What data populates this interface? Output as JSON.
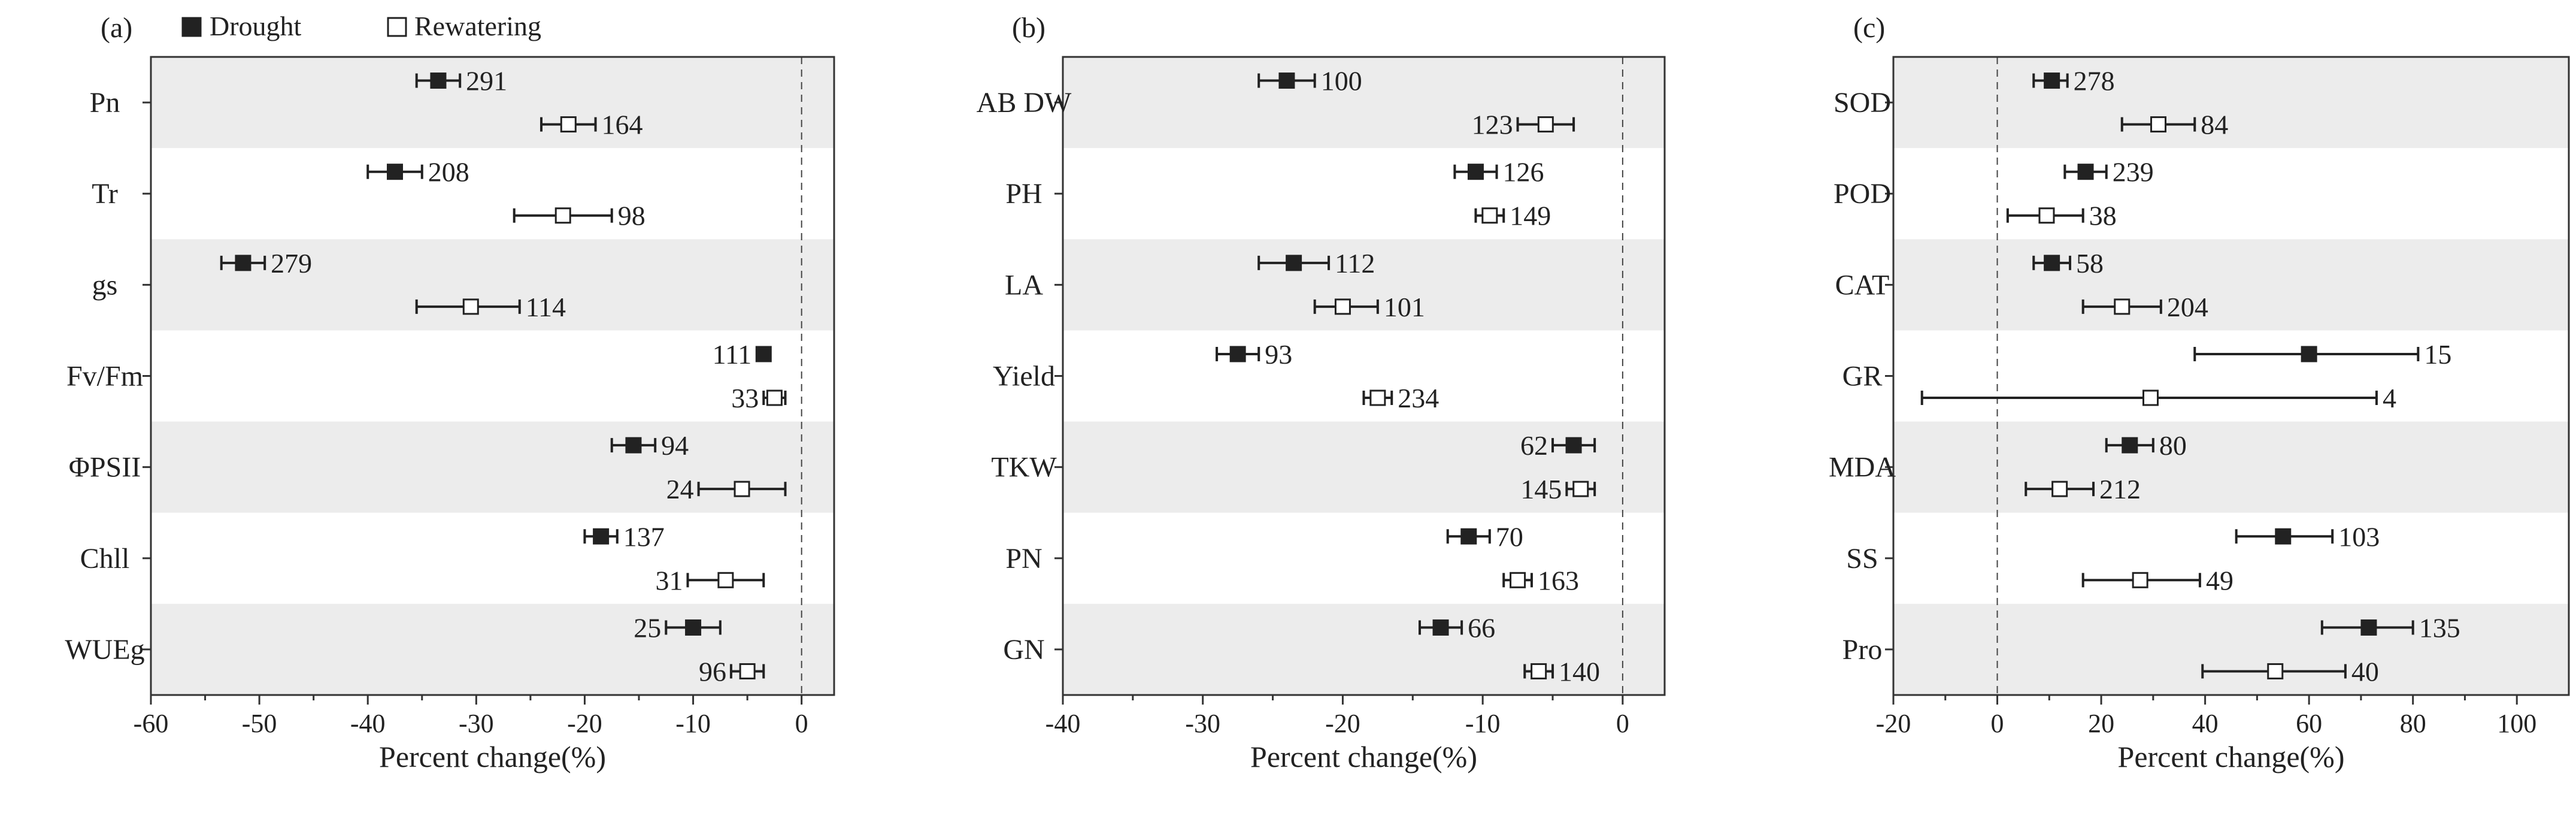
{
  "legend": {
    "drought_label": "Drought",
    "rewatering_label": "Rewatering",
    "drought_color": "#222222",
    "rewatering_color": "#ffffff"
  },
  "colors": {
    "band": "#ececec",
    "axis": "#333333",
    "zero_line": "#444444"
  },
  "chart_data": [
    {
      "type": "forest",
      "panel_label": "(a)",
      "xlabel": "Percent change(%)",
      "xlim": [
        -60,
        3
      ],
      "xticks": [
        -60,
        -50,
        -40,
        -30,
        -20,
        -10,
        0
      ],
      "xtick_labels": [
        "-60",
        "-50",
        "-40",
        "-30",
        "-20",
        "-10",
        "0"
      ],
      "categories": [
        "Pn",
        "Tr",
        "gs",
        "Fv/Fm",
        "ΦPSII",
        "Chll",
        "WUEg"
      ],
      "series": [
        {
          "name": "Drought",
          "mean": [
            -33.5,
            -37.5,
            -51.5,
            -3.5,
            -15.5,
            -18.5,
            -10
          ],
          "lower": [
            -35.5,
            -40,
            -53.5,
            -4,
            -17.5,
            -20,
            -12.5
          ],
          "upper": [
            -31.5,
            -35,
            -49.5,
            -3,
            -13.5,
            -17,
            -7.5
          ],
          "n": [
            "291",
            "208",
            "279",
            "111",
            "94",
            "137",
            "25"
          ],
          "label_side": [
            "right",
            "right",
            "right",
            "left",
            "right",
            "right",
            "left"
          ]
        },
        {
          "name": "Rewatering",
          "mean": [
            -21.5,
            -22,
            -30.5,
            -2.5,
            -5.5,
            -7,
            -5
          ],
          "lower": [
            -24,
            -26.5,
            -35.5,
            -3.5,
            -9.5,
            -10.5,
            -6.5
          ],
          "upper": [
            -19,
            -17.5,
            -26,
            -1.5,
            -1.5,
            -3.5,
            -3.5
          ],
          "n": [
            "164",
            "98",
            "114",
            "33",
            "24",
            "31",
            "96"
          ],
          "label_side": [
            "right",
            "right",
            "right",
            "left",
            "left",
            "left",
            "left"
          ]
        }
      ]
    },
    {
      "type": "forest",
      "panel_label": "(b)",
      "xlabel": "Percent change(%)",
      "xlim": [
        -40,
        3
      ],
      "xticks": [
        -40,
        -30,
        -20,
        -10,
        0
      ],
      "xtick_labels": [
        "-40",
        "-30",
        "-20",
        "-10",
        "0"
      ],
      "categories": [
        "AB DW",
        "PH",
        "LA",
        "Yield",
        "TKW",
        "PN",
        "GN"
      ],
      "series": [
        {
          "name": "Drought",
          "mean": [
            -24,
            -10.5,
            -23.5,
            -27.5,
            -3.5,
            -11,
            -13
          ],
          "lower": [
            -26,
            -12,
            -26,
            -29,
            -5,
            -12.5,
            -14.5
          ],
          "upper": [
            -22,
            -9,
            -21,
            -26,
            -2,
            -9.5,
            -11.5
          ],
          "n": [
            "100",
            "126",
            "112",
            "93",
            "62",
            "70",
            "66"
          ],
          "label_side": [
            "right",
            "right",
            "right",
            "right",
            "left",
            "right",
            "right"
          ]
        },
        {
          "name": "Rewatering",
          "mean": [
            -5.5,
            -9.5,
            -20,
            -17.5,
            -3,
            -7.5,
            -6
          ],
          "lower": [
            -7.5,
            -10.5,
            -22,
            -18.5,
            -4,
            -8.5,
            -7
          ],
          "upper": [
            -3.5,
            -8.5,
            -17.5,
            -16.5,
            -2,
            -6.5,
            -5
          ],
          "n": [
            "123",
            "149",
            "101",
            "234",
            "145",
            "163",
            "140"
          ],
          "label_side": [
            "left",
            "right",
            "right",
            "right",
            "left",
            "right",
            "right"
          ]
        }
      ]
    },
    {
      "type": "forest",
      "panel_label": "(c)",
      "xlabel": "Percent change(%)",
      "xlim": [
        -20,
        110
      ],
      "xticks": [
        -20,
        0,
        20,
        40,
        60,
        80,
        100
      ],
      "xtick_labels": [
        "-20",
        "0",
        "20",
        "40",
        "60",
        "80",
        "100"
      ],
      "categories": [
        "SOD",
        "POD",
        "CAT",
        "GR",
        "MDA",
        "SS",
        "Pro"
      ],
      "series": [
        {
          "name": "Drought",
          "mean": [
            10.5,
            17,
            10.5,
            60,
            25.5,
            55,
            71.5
          ],
          "lower": [
            7,
            13,
            7,
            38,
            21,
            46,
            62.5
          ],
          "upper": [
            13.5,
            21,
            14,
            81,
            30,
            64.5,
            80
          ],
          "n": [
            "278",
            "239",
            "58",
            "15",
            "80",
            "103",
            "135"
          ],
          "label_side": [
            "right",
            "right",
            "right",
            "right",
            "right",
            "right",
            "right"
          ]
        },
        {
          "name": "Rewatering",
          "mean": [
            31,
            9.5,
            24,
            29.5,
            12,
            27.5,
            53.5
          ],
          "lower": [
            24,
            2,
            16.5,
            -14.5,
            5.5,
            16.5,
            39.5
          ],
          "upper": [
            38,
            16.5,
            31.5,
            73,
            18.5,
            39,
            67
          ],
          "n": [
            "84",
            "38",
            "204",
            "4",
            "212",
            "49",
            "40"
          ],
          "label_side": [
            "right",
            "right",
            "right",
            "right",
            "right",
            "right",
            "right"
          ]
        }
      ]
    }
  ]
}
